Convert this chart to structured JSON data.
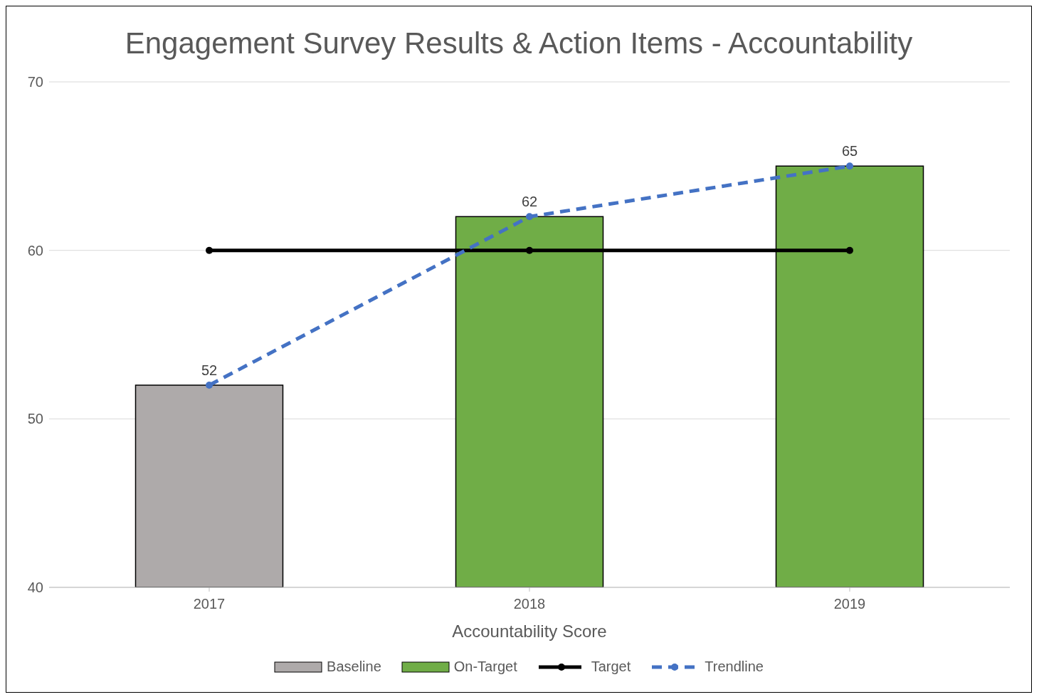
{
  "chart_data": {
    "type": "bar",
    "title": "Engagement Survey Results & Action Items - Accountability",
    "xlabel": "Accountability Score",
    "categories": [
      "2017",
      "2018",
      "2019"
    ],
    "series": [
      {
        "name": "Baseline",
        "color": "#aeaaaa",
        "values": [
          52,
          null,
          null
        ]
      },
      {
        "name": "On-Target",
        "color": "#70ad47",
        "values": [
          null,
          62,
          65
        ]
      },
      {
        "name": "Target",
        "type": "line",
        "color": "#000000",
        "values": [
          60,
          60,
          60
        ],
        "marker": "circle",
        "line_style": "solid"
      },
      {
        "name": "Trendline",
        "type": "line",
        "color": "#4472c4",
        "values": [
          52,
          62,
          65
        ],
        "value_labels": [
          "52",
          "62",
          "65"
        ],
        "marker": "circle",
        "line_style": "dashed"
      }
    ],
    "ylim": [
      40,
      70
    ],
    "yticks": [
      40,
      50,
      60,
      70
    ],
    "grid": "y",
    "legend": "bottom"
  }
}
